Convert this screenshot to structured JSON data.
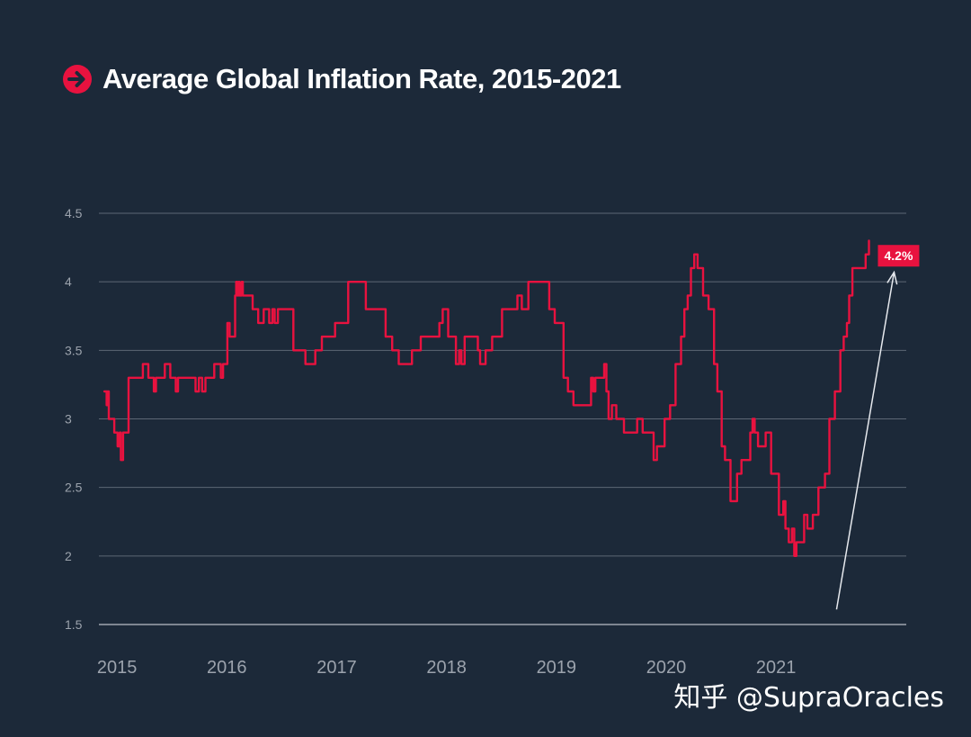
{
  "colors": {
    "background": "#1c2939",
    "accent": "#e8123f",
    "grid": "#5c6775",
    "tick": "#9ca3ad",
    "arrow": "#e6e9ee"
  },
  "watermark": "知乎 @SupraOracles",
  "chart_data": {
    "type": "line",
    "title": "Average Global Inflation Rate, 2015-2021",
    "title_icon": "arrow-right-circle-icon",
    "xlabel": "",
    "ylabel": "",
    "ylim": [
      1.5,
      4.5
    ],
    "y_ticks": [
      "4.5",
      "4",
      "3.5",
      "3",
      "2.5",
      "2",
      "1.5"
    ],
    "x_ticks": [
      {
        "label": "2015",
        "x": 2015.0
      },
      {
        "label": "2016",
        "x": 2016.0
      },
      {
        "label": "2017",
        "x": 2017.0
      },
      {
        "label": "2018",
        "x": 2018.0
      },
      {
        "label": "2019",
        "x": 2019.0
      },
      {
        "label": "2020",
        "x": 2020.0
      },
      {
        "label": "2021",
        "x": 2021.0
      }
    ],
    "xlim": [
      2014.95,
      2022.3
    ],
    "grid": true,
    "annotation": {
      "label": "4.2%",
      "value": 4.2
    },
    "series": [
      {
        "name": "Average Global Inflation Rate",
        "step": true,
        "points": [
          [
            2015.0,
            3.2
          ],
          [
            2015.02,
            3.1
          ],
          [
            2015.03,
            3.2
          ],
          [
            2015.04,
            3.0
          ],
          [
            2015.07,
            3.0
          ],
          [
            2015.09,
            2.9
          ],
          [
            2015.12,
            2.8
          ],
          [
            2015.14,
            2.9
          ],
          [
            2015.15,
            2.7
          ],
          [
            2015.17,
            2.9
          ],
          [
            2015.2,
            2.9
          ],
          [
            2015.22,
            3.3
          ],
          [
            2015.35,
            3.4
          ],
          [
            2015.4,
            3.3
          ],
          [
            2015.45,
            3.2
          ],
          [
            2015.47,
            3.3
          ],
          [
            2015.55,
            3.4
          ],
          [
            2015.6,
            3.3
          ],
          [
            2015.63,
            3.3
          ],
          [
            2015.65,
            3.2
          ],
          [
            2015.67,
            3.3
          ],
          [
            2015.72,
            3.3
          ],
          [
            2015.83,
            3.2
          ],
          [
            2015.86,
            3.3
          ],
          [
            2015.89,
            3.2
          ],
          [
            2015.92,
            3.3
          ],
          [
            2015.96,
            3.3
          ],
          [
            2016.0,
            3.4
          ],
          [
            2016.06,
            3.3
          ],
          [
            2016.08,
            3.4
          ],
          [
            2016.12,
            3.7
          ],
          [
            2016.14,
            3.6
          ],
          [
            2016.16,
            3.6
          ],
          [
            2016.19,
            3.9
          ],
          [
            2016.2,
            4.0
          ],
          [
            2016.21,
            3.9
          ],
          [
            2016.22,
            4.0
          ],
          [
            2016.23,
            3.9
          ],
          [
            2016.25,
            4.0
          ],
          [
            2016.26,
            3.9
          ],
          [
            2016.35,
            3.8
          ],
          [
            2016.38,
            3.8
          ],
          [
            2016.4,
            3.7
          ],
          [
            2016.45,
            3.8
          ],
          [
            2016.5,
            3.7
          ],
          [
            2016.53,
            3.8
          ],
          [
            2016.55,
            3.7
          ],
          [
            2016.58,
            3.8
          ],
          [
            2016.72,
            3.5
          ],
          [
            2016.81,
            3.5
          ],
          [
            2016.83,
            3.4
          ],
          [
            2016.92,
            3.5
          ],
          [
            2016.98,
            3.6
          ],
          [
            2017.1,
            3.7
          ],
          [
            2017.22,
            4.0
          ],
          [
            2017.38,
            3.8
          ],
          [
            2017.56,
            3.6
          ],
          [
            2017.62,
            3.5
          ],
          [
            2017.68,
            3.4
          ],
          [
            2017.8,
            3.5
          ],
          [
            2017.88,
            3.6
          ],
          [
            2018.05,
            3.7
          ],
          [
            2018.08,
            3.8
          ],
          [
            2018.13,
            3.6
          ],
          [
            2018.17,
            3.6
          ],
          [
            2018.2,
            3.4
          ],
          [
            2018.23,
            3.5
          ],
          [
            2018.25,
            3.4
          ],
          [
            2018.28,
            3.6
          ],
          [
            2018.4,
            3.5
          ],
          [
            2018.42,
            3.4
          ],
          [
            2018.47,
            3.5
          ],
          [
            2018.53,
            3.6
          ],
          [
            2018.62,
            3.8
          ],
          [
            2018.71,
            3.8
          ],
          [
            2018.76,
            3.9
          ],
          [
            2018.8,
            3.8
          ],
          [
            2018.86,
            4.0
          ],
          [
            2019.05,
            3.8
          ],
          [
            2019.1,
            3.7
          ],
          [
            2019.18,
            3.3
          ],
          [
            2019.22,
            3.2
          ],
          [
            2019.27,
            3.1
          ],
          [
            2019.43,
            3.3
          ],
          [
            2019.45,
            3.2
          ],
          [
            2019.47,
            3.3
          ],
          [
            2019.55,
            3.4
          ],
          [
            2019.57,
            3.2
          ],
          [
            2019.59,
            3.0
          ],
          [
            2019.62,
            3.1
          ],
          [
            2019.66,
            3.0
          ],
          [
            2019.73,
            2.9
          ],
          [
            2019.85,
            3.0
          ],
          [
            2019.9,
            2.9
          ],
          [
            2020.0,
            2.7
          ],
          [
            2020.03,
            2.8
          ],
          [
            2020.1,
            3.0
          ],
          [
            2020.15,
            3.1
          ],
          [
            2020.2,
            3.4
          ],
          [
            2020.25,
            3.6
          ],
          [
            2020.28,
            3.8
          ],
          [
            2020.31,
            3.9
          ],
          [
            2020.34,
            4.1
          ],
          [
            2020.37,
            4.2
          ],
          [
            2020.4,
            4.1
          ],
          [
            2020.45,
            3.9
          ],
          [
            2020.5,
            3.8
          ],
          [
            2020.55,
            3.4
          ],
          [
            2020.58,
            3.2
          ],
          [
            2020.62,
            2.8
          ],
          [
            2020.65,
            2.7
          ],
          [
            2020.7,
            2.4
          ],
          [
            2020.76,
            2.6
          ],
          [
            2020.8,
            2.7
          ],
          [
            2020.88,
            2.9
          ],
          [
            2020.9,
            3.0
          ],
          [
            2020.92,
            2.9
          ],
          [
            2020.95,
            2.8
          ],
          [
            2021.02,
            2.9
          ],
          [
            2021.07,
            2.6
          ],
          [
            2021.14,
            2.3
          ],
          [
            2021.18,
            2.4
          ],
          [
            2021.2,
            2.2
          ],
          [
            2021.23,
            2.1
          ],
          [
            2021.26,
            2.2
          ],
          [
            2021.28,
            2.0
          ],
          [
            2021.3,
            2.1
          ],
          [
            2021.37,
            2.3
          ],
          [
            2021.4,
            2.2
          ],
          [
            2021.45,
            2.3
          ],
          [
            2021.5,
            2.5
          ],
          [
            2021.56,
            2.6
          ],
          [
            2021.6,
            3.0
          ],
          [
            2021.65,
            3.2
          ],
          [
            2021.7,
            3.5
          ],
          [
            2021.73,
            3.6
          ],
          [
            2021.76,
            3.7
          ],
          [
            2021.78,
            3.9
          ],
          [
            2021.81,
            4.1
          ],
          [
            2021.93,
            4.2
          ],
          [
            2021.96,
            4.3
          ]
        ]
      }
    ]
  }
}
